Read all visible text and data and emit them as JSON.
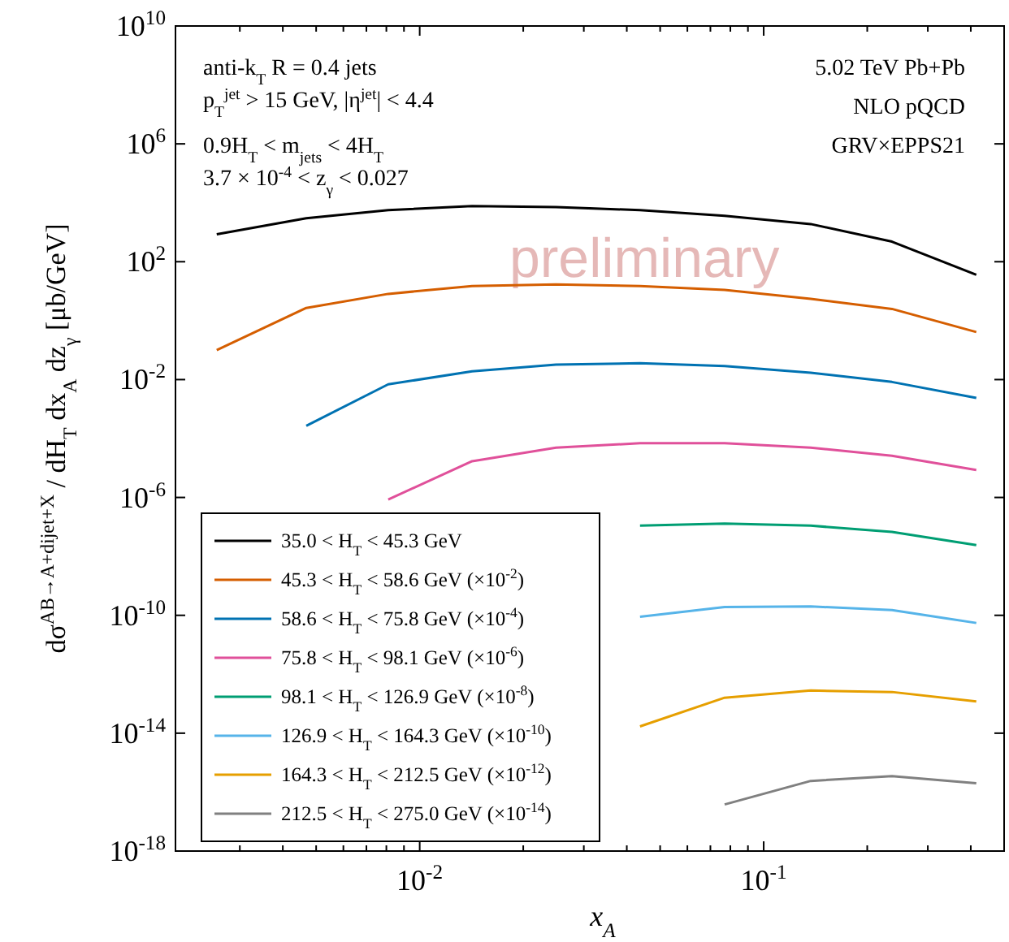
{
  "chart_data": {
    "type": "line",
    "xlabel": "x$_{A}$",
    "ylabel": "dσ$^{AB→A+dijet+X}$ / dH$_{T}$ dx$_{A}$ dz$_{γ}$ [μb/GeV]",
    "log": "xy",
    "grid": false,
    "legend": "bottom left",
    "marker": "none",
    "line_style": "solid",
    "x": [
      0.00257,
      0.00468,
      0.0081,
      0.0142,
      0.0249,
      0.0437,
      0.077,
      0.137,
      0.236,
      0.415
    ],
    "xlim": [
      0.00195,
      0.5
    ],
    "xticks": [
      {
        "value": 0.003,
        "label": null
      },
      {
        "value": 0.004,
        "label": null
      },
      {
        "value": 0.005,
        "label": null
      },
      {
        "value": 0.006,
        "label": null
      },
      {
        "value": 0.007,
        "label": null
      },
      {
        "value": 0.008,
        "label": null
      },
      {
        "value": 0.009,
        "label": null
      },
      {
        "value": 0.01,
        "label": "10$^{-2}$"
      },
      {
        "value": 0.02,
        "label": null
      },
      {
        "value": 0.03,
        "label": null
      },
      {
        "value": 0.04,
        "label": null
      },
      {
        "value": 0.05,
        "label": null
      },
      {
        "value": 0.06,
        "label": null
      },
      {
        "value": 0.07,
        "label": null
      },
      {
        "value": 0.08,
        "label": null
      },
      {
        "value": 0.09,
        "label": null
      },
      {
        "value": 0.1,
        "label": "10$^{-1}$"
      },
      {
        "value": 0.2,
        "label": null
      },
      {
        "value": 0.3,
        "label": null
      },
      {
        "value": 0.4,
        "label": null
      }
    ],
    "ylim": [
      1e-18,
      10000000000.0
    ],
    "yticks": [
      {
        "value": 1e-18,
        "label": "10$^{-18}$"
      },
      {
        "value": 1e-14,
        "label": "10$^{-14}$"
      },
      {
        "value": 1e-10,
        "label": "10$^{-10}$"
      },
      {
        "value": 1e-06,
        "label": "10$^{-6}$"
      },
      {
        "value": 0.01,
        "label": "10$^{-2}$"
      },
      {
        "value": 100,
        "label": "10$^{2}$"
      },
      {
        "value": 1000000.0,
        "label": "10$^{6}$"
      },
      {
        "value": 10000000000.0,
        "label": "10$^{10}$"
      }
    ],
    "annotations": [
      "anti-k$_{T}$ R = 0.4 jets",
      "p$_{T}$$^{jet}$ > 15 GeV, |η$^{jet}$| < 4.4",
      "0.9H$_{T}$ < m$_{jets}$ < 4H$_{T}$",
      "3.7 × 10$^{-4}$ < z$_{γ}$ < 0.027",
      "5.02 TeV Pb+Pb",
      "NLO pQCD",
      "GRV×EPPS21",
      "preliminary"
    ],
    "series": [
      {
        "name": "35.0 < H$_{T}$ < 45.3 GeV",
        "color": "#000000",
        "values": [
          850,
          3000,
          5600,
          7800,
          7200,
          5600,
          3600,
          1900,
          480,
          36
        ]
      },
      {
        "name": "45.3 < H$_{T}$ < 58.6 GeV (×10$^{-2}$)",
        "color": "#d55e00",
        "values": [
          0.1,
          2.7,
          8.1,
          15,
          17,
          15,
          11,
          5.5,
          2.5,
          0.41
        ]
      },
      {
        "name": "58.6 < H$_{T}$ < 75.8 GeV (×10$^{-4}$)",
        "color": "#0072b2",
        "values": [
          null,
          0.00027,
          0.0069,
          0.019,
          0.032,
          0.036,
          0.029,
          0.017,
          0.0083,
          0.0024
        ]
      },
      {
        "name": "75.8 < H$_{T}$ < 98.1 GeV (×10$^{-6}$)",
        "color": "#e0509a",
        "values": [
          null,
          null,
          8.5e-07,
          1.7e-05,
          4.9e-05,
          6.9e-05,
          6.9e-05,
          4.9e-05,
          2.6e-05,
          8.5e-06
        ]
      },
      {
        "name": "98.1 < H$_{T}$ < 126.9 GeV (×10$^{-8}$)",
        "color": "#009e73",
        "values": [
          null,
          null,
          null,
          null,
          null,
          1.1e-07,
          1.3e-07,
          1.1e-07,
          6.8e-08,
          2.4e-08
        ]
      },
      {
        "name": "126.9 < H$_{T}$ < 164.3 GeV (×10$^{-10}$)",
        "color": "#56b4e9",
        "values": [
          null,
          null,
          null,
          null,
          null,
          8.9e-11,
          1.9e-10,
          2e-10,
          1.5e-10,
          5.5e-11
        ]
      },
      {
        "name": "164.3 < H$_{T}$ < 212.5 GeV (×10$^{-12}$)",
        "color": "#e69f00",
        "values": [
          null,
          null,
          null,
          null,
          null,
          1.7e-14,
          1.6e-13,
          2.8e-13,
          2.5e-13,
          1.2e-13
        ]
      },
      {
        "name": "212.5 < H$_{T}$ < 275.0 GeV (×10$^{-14}$)",
        "color": "#808080",
        "values": [
          null,
          null,
          null,
          null,
          null,
          null,
          3.8e-17,
          2.4e-16,
          3.5e-16,
          2e-16
        ]
      }
    ]
  }
}
